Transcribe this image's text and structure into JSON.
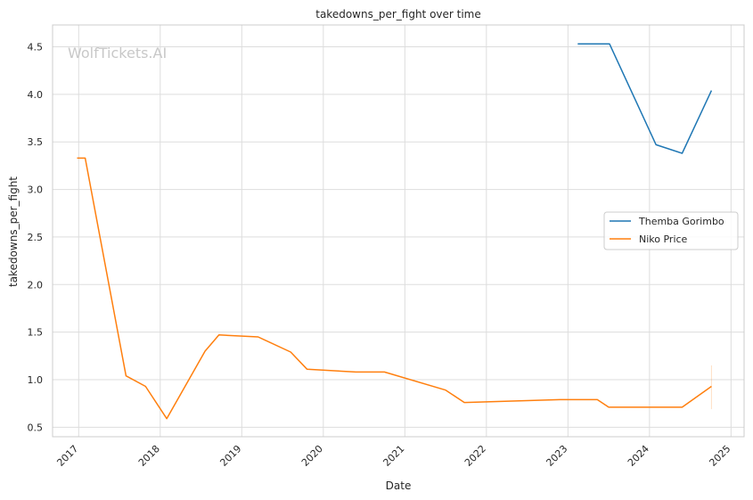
{
  "chart_data": {
    "type": "line",
    "title": "takedowns_per_fight over time",
    "xlabel": "Date",
    "ylabel": "takedowns_per_fight",
    "watermark": "WolfTickets.AI",
    "x_ticks": [
      "2017",
      "2018",
      "2019",
      "2020",
      "2021",
      "2022",
      "2023",
      "2024",
      "2025"
    ],
    "y_ticks": [
      "0.5",
      "1.0",
      "1.5",
      "2.0",
      "2.5",
      "3.0",
      "3.5",
      "4.0",
      "4.5"
    ],
    "xlim": [
      2016.68,
      2025.16
    ],
    "ylim": [
      0.4,
      4.73
    ],
    "grid": true,
    "legend_position": "center-right",
    "series": [
      {
        "name": "Themba Gorimbo",
        "color": "#1f77b4",
        "x": [
          2023.12,
          2023.51,
          2024.08,
          2024.4,
          2024.76
        ],
        "y": [
          4.53,
          4.53,
          3.47,
          3.38,
          4.04
        ]
      },
      {
        "name": "Niko Price",
        "color": "#ff7f0e",
        "x": [
          2016.98,
          2017.08,
          2017.58,
          2017.82,
          2018.08,
          2018.55,
          2018.72,
          2019.2,
          2019.6,
          2019.8,
          2020.4,
          2020.75,
          2021.5,
          2021.73,
          2022.9,
          2023.36,
          2023.5,
          2024.06,
          2024.4,
          2024.76
        ],
        "y": [
          3.33,
          3.33,
          1.04,
          0.93,
          0.59,
          1.3,
          1.47,
          1.45,
          1.29,
          1.11,
          1.08,
          1.08,
          0.89,
          0.76,
          0.79,
          0.79,
          0.71,
          0.71,
          0.71,
          0.93
        ]
      }
    ]
  }
}
